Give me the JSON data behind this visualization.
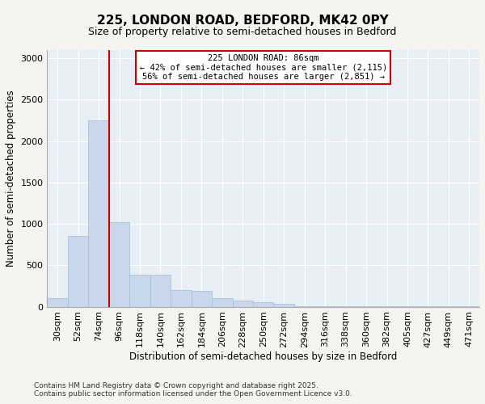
{
  "title1": "225, LONDON ROAD, BEDFORD, MK42 0PY",
  "title2": "Size of property relative to semi-detached houses in Bedford",
  "xlabel": "Distribution of semi-detached houses by size in Bedford",
  "ylabel": "Number of semi-detached properties",
  "categories": [
    "30sqm",
    "52sqm",
    "74sqm",
    "96sqm",
    "118sqm",
    "140sqm",
    "162sqm",
    "184sqm",
    "206sqm",
    "228sqm",
    "250sqm",
    "272sqm",
    "294sqm",
    "316sqm",
    "338sqm",
    "360sqm",
    "382sqm",
    "405sqm",
    "427sqm",
    "449sqm",
    "471sqm"
  ],
  "values": [
    100,
    850,
    2250,
    1020,
    390,
    390,
    200,
    190,
    105,
    70,
    55,
    30,
    5,
    2,
    2,
    2,
    1,
    1,
    1,
    1,
    1
  ],
  "bar_color": "#c8d8ea",
  "bar_edge_color": "#a0bcd4",
  "background_color": "#f4f4f0",
  "plot_bg_color": "#e8eef5",
  "grid_color": "#ffffff",
  "annotation_box_color": "#cc0000",
  "vline_color": "#cc0000",
  "vline_x_index": 2,
  "annotation_text": "225 LONDON ROAD: 86sqm\n← 42% of semi-detached houses are smaller (2,115)\n56% of semi-detached houses are larger (2,851) →",
  "footnote1": "Contains HM Land Registry data © Crown copyright and database right 2025.",
  "footnote2": "Contains public sector information licensed under the Open Government Licence v3.0.",
  "ylim": [
    0,
    3100
  ],
  "yticks": [
    0,
    500,
    1000,
    1500,
    2000,
    2500,
    3000
  ]
}
